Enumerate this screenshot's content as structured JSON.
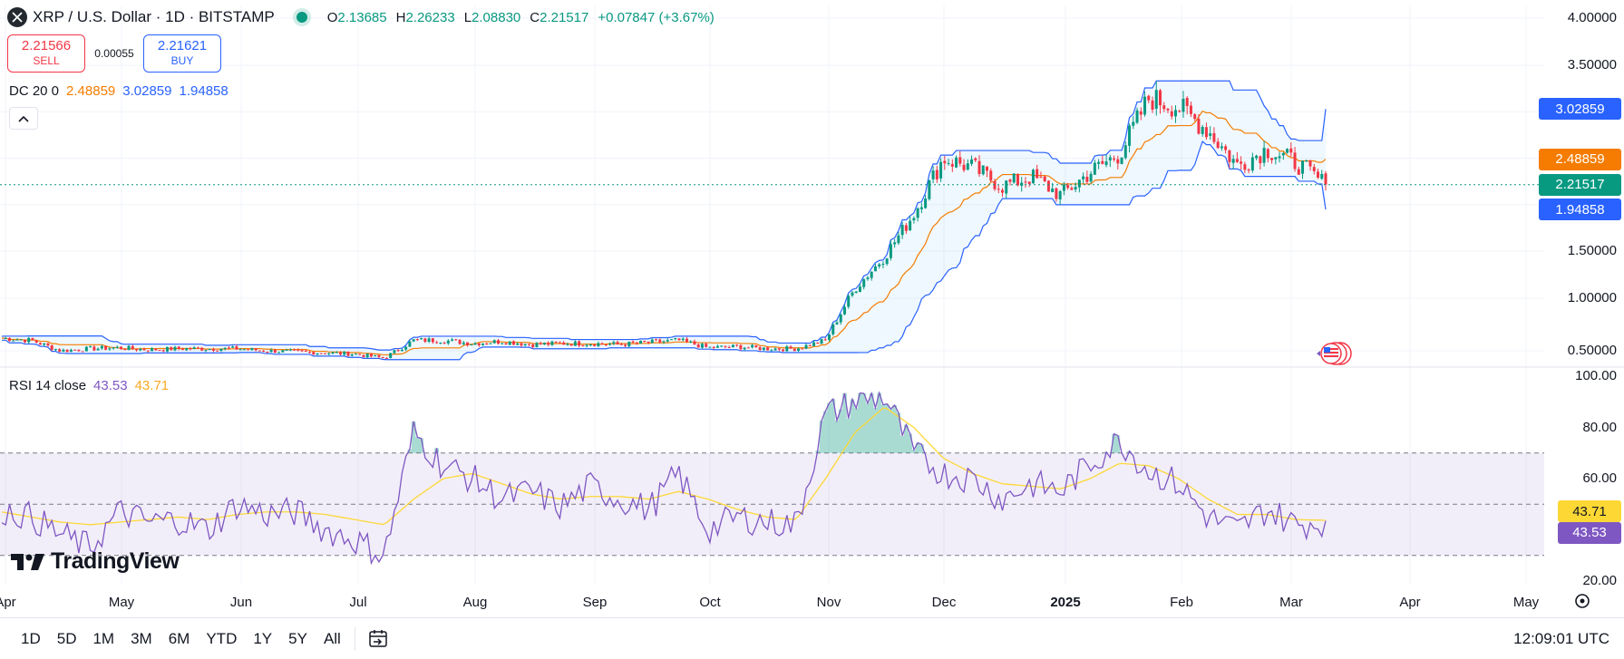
{
  "header": {
    "symbol": "XRP / U.S. Dollar · 1D · BITSTAMP",
    "ohlc": [
      {
        "key": "O",
        "value": "2.13685"
      },
      {
        "key": "H",
        "value": "2.26233"
      },
      {
        "key": "L",
        "value": "2.08830"
      },
      {
        "key": "C",
        "value": "2.21517"
      }
    ],
    "change": "+0.07847 (+3.67%)"
  },
  "trade": {
    "sell_price": "2.21566",
    "sell_label": "SELL",
    "spread": "0.00055",
    "buy_price": "2.21621",
    "buy_label": "BUY"
  },
  "dc_legend": {
    "name": "DC 20 0",
    "basis": "2.48859",
    "upper": "3.02859",
    "lower": "1.94858"
  },
  "rsi_legend": {
    "name": "RSI 14 close",
    "rsi": "43.53",
    "ma": "43.71"
  },
  "brand": "TradingView",
  "price_axis": {
    "ticks": [
      "4.00000",
      "3.50000",
      "1.50000",
      "1.00000",
      "0.50000"
    ],
    "tick_values": [
      4.0,
      3.5,
      1.5,
      1.0,
      0.5
    ],
    "labels": [
      {
        "text": "3.02859",
        "value": 3.02859,
        "color": "#2962ff"
      },
      {
        "text": "2.48859",
        "value": 2.48859,
        "color": "#f57c00"
      },
      {
        "text": "2.21517",
        "value": 2.21517,
        "color": "#089981"
      },
      {
        "text": "1.94858",
        "value": 1.94858,
        "color": "#2962ff"
      }
    ]
  },
  "rsi_axis": {
    "ticks": [
      "100.00",
      "80.00",
      "60.00",
      "20.00"
    ],
    "tick_values": [
      100,
      80,
      60,
      20
    ],
    "labels": [
      {
        "text": "43.71",
        "value": 43.71,
        "color": "#fdd835",
        "text_color": "#131722"
      },
      {
        "text": "43.53",
        "value": 43.53,
        "color": "#7e57c2",
        "text_color": "#ffffff"
      }
    ]
  },
  "time_axis": {
    "labels": [
      "Apr",
      "May",
      "Jun",
      "Jul",
      "Aug",
      "Sep",
      "Oct",
      "Nov",
      "Dec",
      "2025",
      "Feb",
      "Mar",
      "Apr",
      "May"
    ],
    "bold": [
      "2025"
    ]
  },
  "toolbar": {
    "ranges": [
      "1D",
      "5D",
      "1M",
      "3M",
      "6M",
      "YTD",
      "1Y",
      "5Y",
      "All"
    ],
    "time": "12:09:01 UTC"
  },
  "colors": {
    "up": "#089981",
    "down": "#f23645",
    "dc_channel": "#2962ff",
    "dc_basis": "#f57c00",
    "rsi": "#7e57c2",
    "rsi_ma": "#fdd835"
  },
  "chart_data": [
    {
      "type": "candlestick",
      "title": "XRP / U.S. Dollar · 1D · BITSTAMP",
      "x_range": [
        "Apr",
        "May"
      ],
      "ylim": [
        0.3,
        4.15
      ],
      "weekly_close_approx": {
        "x": [
          "Apr",
          "",
          "",
          "",
          "May",
          "",
          "",
          "",
          "Jun",
          "",
          "",
          "",
          "Jul",
          "",
          "",
          "",
          "Aug",
          "",
          "",
          "",
          "Sep",
          "",
          "",
          "",
          "Oct",
          "",
          "",
          "",
          "Nov",
          "",
          "",
          "",
          "Dec",
          "",
          "",
          "",
          "2025",
          "",
          "",
          "",
          "Feb",
          "",
          "",
          "",
          "Mar",
          ""
        ],
        "values": [
          0.62,
          0.6,
          0.5,
          0.52,
          0.53,
          0.51,
          0.52,
          0.52,
          0.52,
          0.5,
          0.49,
          0.48,
          0.47,
          0.43,
          0.6,
          0.6,
          0.57,
          0.59,
          0.56,
          0.57,
          0.57,
          0.56,
          0.58,
          0.6,
          0.53,
          0.54,
          0.52,
          0.52,
          0.6,
          1.1,
          1.44,
          1.9,
          2.5,
          2.4,
          2.2,
          2.3,
          2.1,
          2.35,
          2.55,
          3.15,
          3.05,
          2.8,
          2.42,
          2.6,
          2.45,
          2.21517
        ]
      },
      "donchian": {
        "length": 20,
        "basis": 2.48859,
        "upper": 3.02859,
        "lower": 1.94858
      },
      "last_close": 2.21517
    },
    {
      "type": "line",
      "title": "RSI 14 close",
      "ylim": [
        16,
        104
      ],
      "bands": {
        "upper": 70,
        "middle": 50,
        "lower": 30
      },
      "series": [
        {
          "name": "RSI",
          "values": [
            48,
            45,
            38,
            33,
            47,
            43,
            44,
            40,
            50,
            46,
            47,
            40,
            36,
            30,
            78,
            65,
            60,
            52,
            55,
            49,
            57,
            52,
            48,
            62,
            40,
            45,
            43,
            42,
            85,
            90,
            92,
            70,
            62,
            60,
            52,
            58,
            55,
            66,
            75,
            63,
            58,
            45,
            40,
            48,
            42,
            43.53
          ]
        },
        {
          "name": "MA",
          "values": [
            47,
            45,
            43,
            42,
            43,
            44,
            45,
            44,
            46,
            47,
            47,
            46,
            44,
            42,
            52,
            60,
            62,
            58,
            54,
            52,
            53,
            53,
            52,
            55,
            52,
            48,
            45,
            44,
            60,
            78,
            88,
            80,
            68,
            62,
            58,
            57,
            56,
            60,
            66,
            65,
            60,
            52,
            46,
            46,
            44,
            43.71
          ]
        }
      ],
      "last": {
        "rsi": 43.53,
        "ma": 43.71
      }
    }
  ]
}
